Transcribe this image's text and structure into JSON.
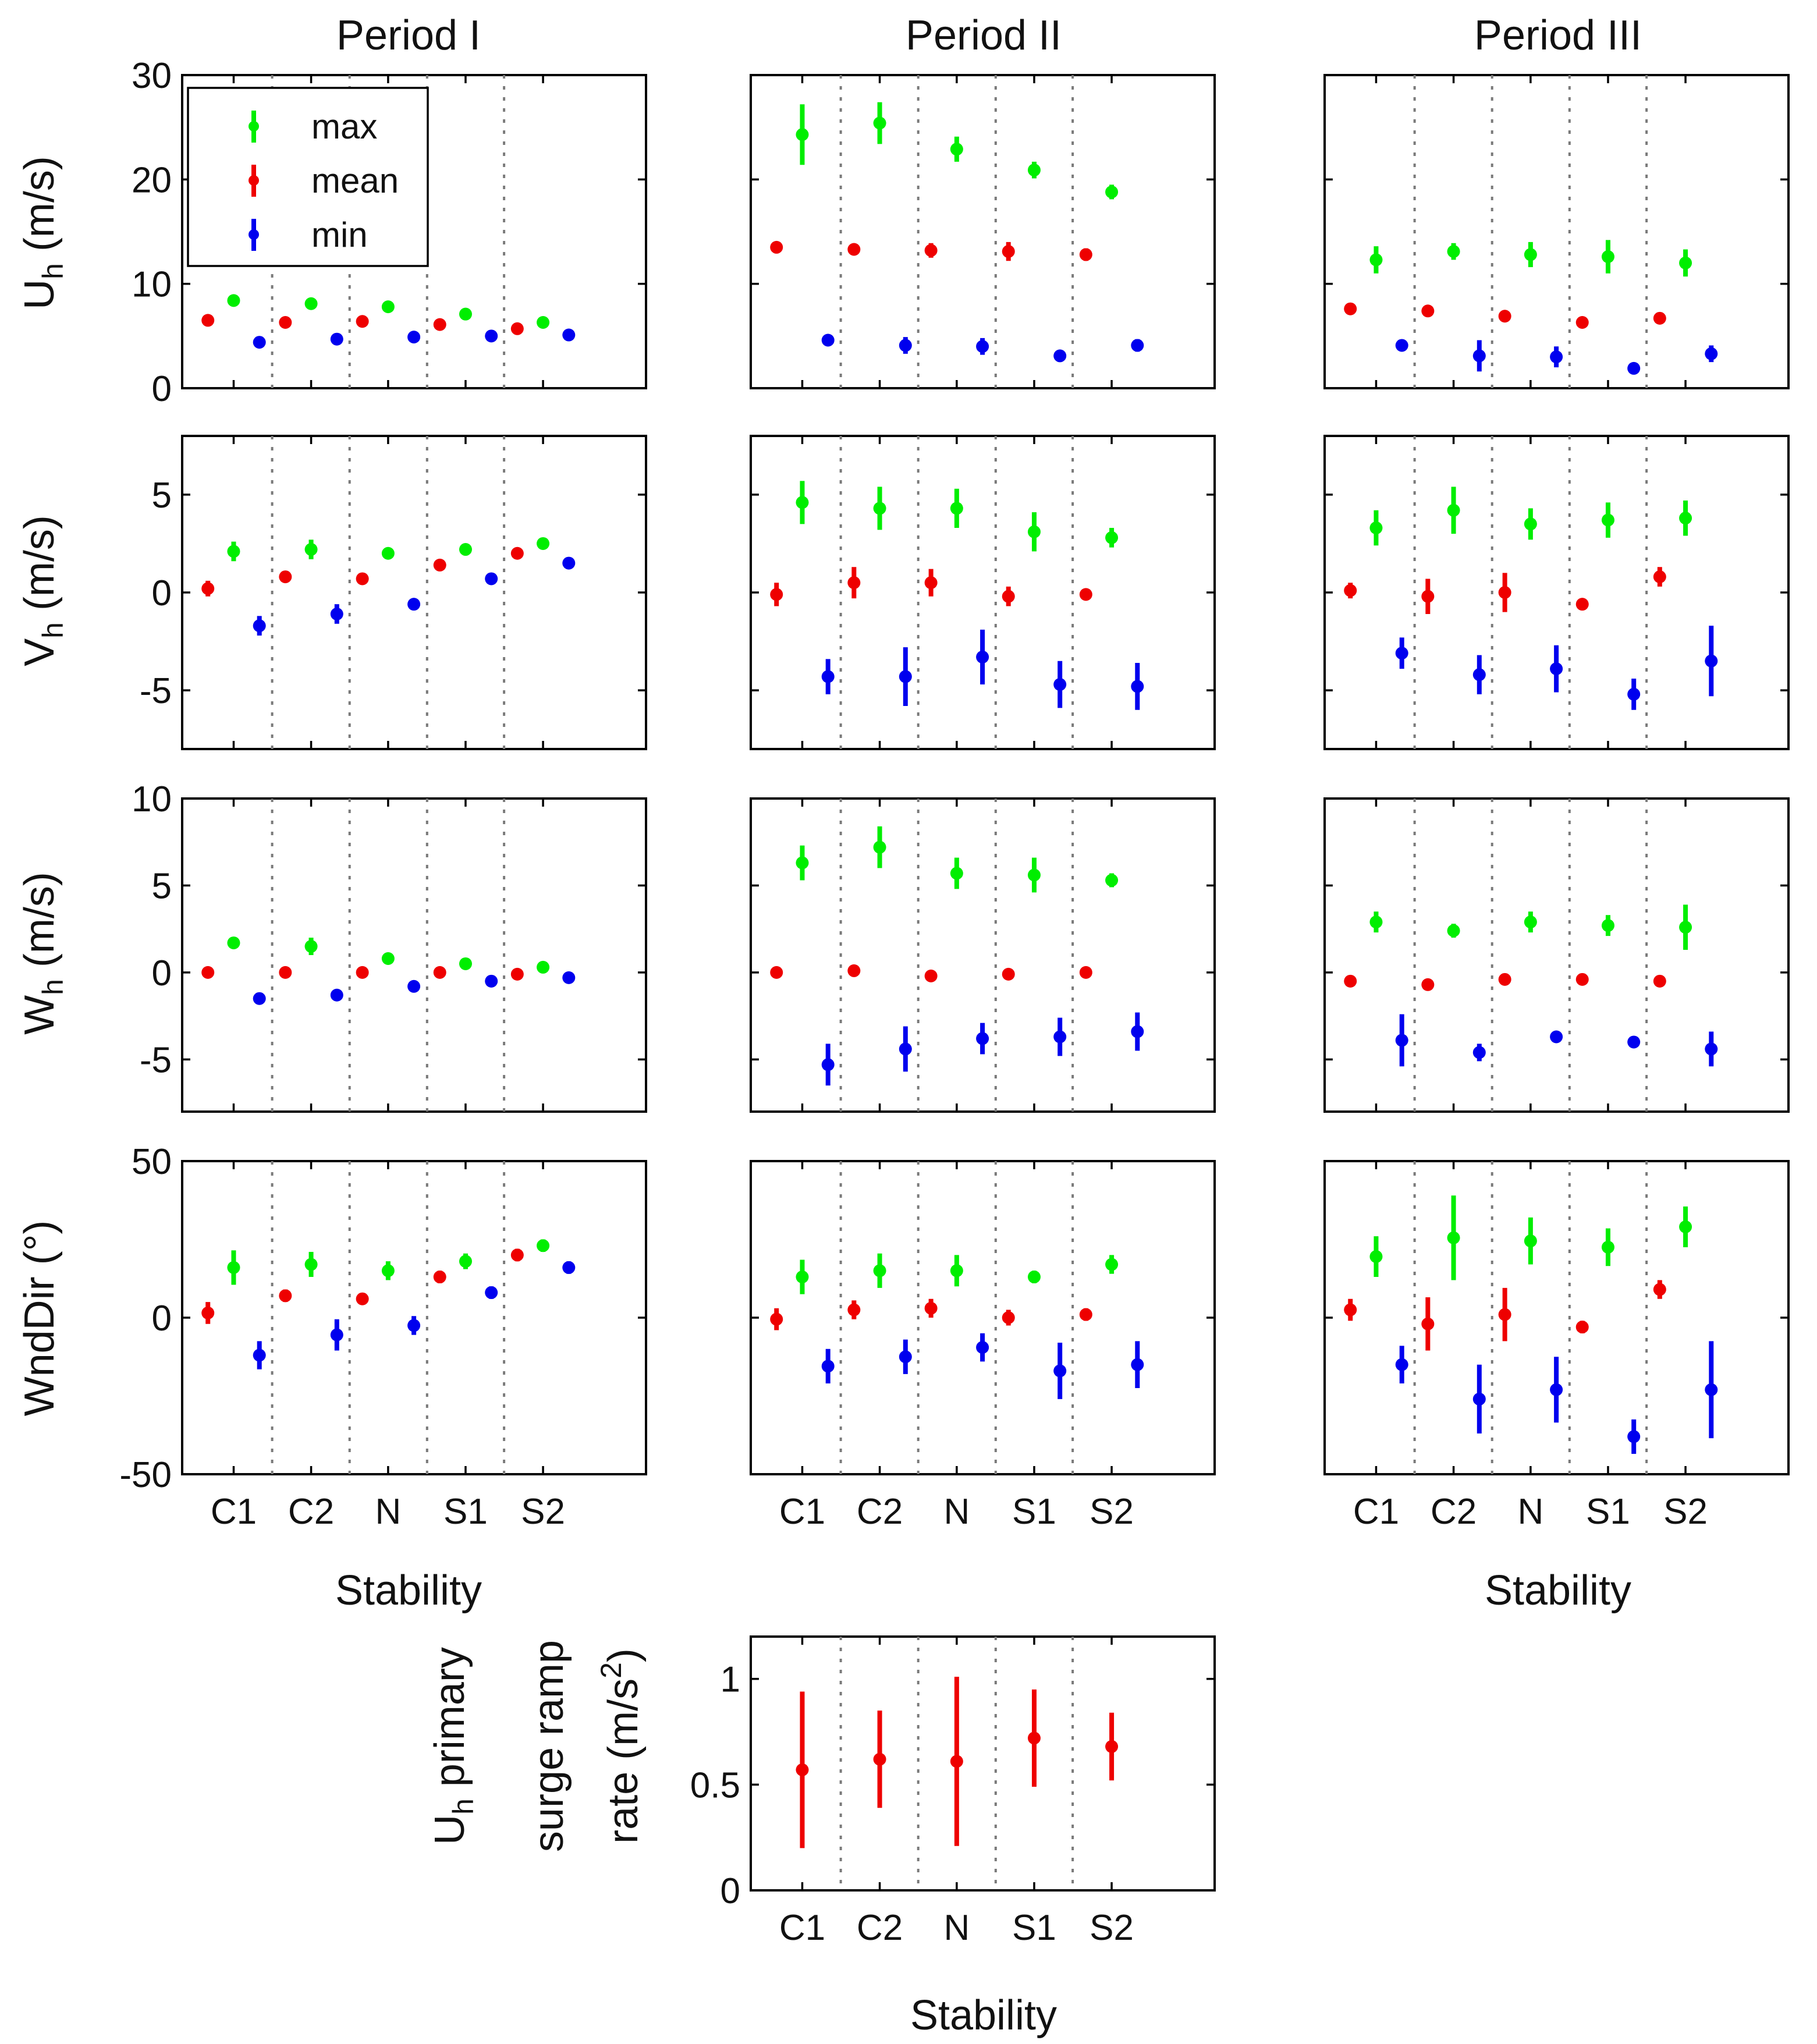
{
  "colors": {
    "max": "#00ee00",
    "mean": "#ee0000",
    "min": "#0000ee",
    "separator": "#7a7a7a"
  },
  "legend": {
    "entries": [
      {
        "key": "max",
        "label": "max"
      },
      {
        "key": "mean",
        "label": "mean"
      },
      {
        "key": "min",
        "label": "min"
      }
    ]
  },
  "chart_data": {
    "type": "errorbar",
    "categories": [
      "C1",
      "C2",
      "N",
      "S1",
      "S2"
    ],
    "xlabel": "Stability",
    "period_titles": [
      "Period I",
      "Period II",
      "Period III"
    ],
    "rows": [
      {
        "id": "uh",
        "ylabel_main": "U",
        "ylabel_sub": "h",
        "ylabel_rest": " (m/s)",
        "ylim": [
          0,
          30
        ],
        "yticks": [
          0,
          10,
          20,
          30
        ],
        "ytick_labels": [
          "0",
          "10",
          "20",
          "30"
        ],
        "periods": [
          {
            "max": [
              [
                8.4,
                0.4
              ],
              [
                8.1,
                0.4
              ],
              [
                7.8,
                0.4
              ],
              [
                7.1,
                0.3
              ],
              [
                6.3,
                0.3
              ]
            ],
            "mean": [
              [
                6.5,
                0.3
              ],
              [
                6.3,
                0.3
              ],
              [
                6.4,
                0.3
              ],
              [
                6.1,
                0.3
              ],
              [
                5.7,
                0.3
              ]
            ],
            "min": [
              [
                4.4,
                0.3
              ],
              [
                4.7,
                0.3
              ],
              [
                4.9,
                0.3
              ],
              [
                5.0,
                0.3
              ],
              [
                5.1,
                0.3
              ]
            ]
          },
          {
            "max": [
              [
                24.3,
                2.9
              ],
              [
                25.4,
                2.0
              ],
              [
                22.9,
                1.2
              ],
              [
                20.9,
                0.8
              ],
              [
                18.8,
                0.7
              ]
            ],
            "mean": [
              [
                13.5,
                0.4
              ],
              [
                13.3,
                0.5
              ],
              [
                13.2,
                0.7
              ],
              [
                13.1,
                0.9
              ],
              [
                12.8,
                0.6
              ]
            ],
            "min": [
              [
                4.6,
                0.4
              ],
              [
                4.1,
                0.8
              ],
              [
                4.0,
                0.8
              ],
              [
                3.1,
                0.4
              ],
              [
                4.1,
                0.6
              ]
            ]
          },
          {
            "max": [
              [
                12.3,
                1.3
              ],
              [
                13.1,
                0.8
              ],
              [
                12.8,
                1.2
              ],
              [
                12.6,
                1.6
              ],
              [
                12.0,
                1.3
              ]
            ],
            "mean": [
              [
                7.6,
                0.3
              ],
              [
                7.4,
                0.3
              ],
              [
                6.9,
                0.3
              ],
              [
                6.3,
                0.3
              ],
              [
                6.7,
                0.3
              ]
            ],
            "min": [
              [
                4.1,
                0.4
              ],
              [
                3.1,
                1.5
              ],
              [
                3.0,
                1.0
              ],
              [
                1.9,
                0.4
              ],
              [
                3.3,
                0.8
              ]
            ]
          }
        ]
      },
      {
        "id": "vh",
        "ylabel_main": "V",
        "ylabel_sub": "h",
        "ylabel_rest": " (m/s)",
        "ylim": [
          -8,
          8
        ],
        "yticks": [
          -5,
          0,
          5
        ],
        "ytick_labels": [
          "-5",
          "0",
          "5"
        ],
        "periods": [
          {
            "max": [
              [
                2.1,
                0.5
              ],
              [
                2.2,
                0.5
              ],
              [
                2.0,
                0.3
              ],
              [
                2.2,
                0.3
              ],
              [
                2.5,
                0.3
              ]
            ],
            "mean": [
              [
                0.2,
                0.4
              ],
              [
                0.8,
                0.3
              ],
              [
                0.7,
                0.3
              ],
              [
                1.4,
                0.3
              ],
              [
                2.0,
                0.3
              ]
            ],
            "min": [
              [
                -1.7,
                0.5
              ],
              [
                -1.1,
                0.5
              ],
              [
                -0.6,
                0.3
              ],
              [
                0.7,
                0.3
              ],
              [
                1.5,
                0.3
              ]
            ]
          },
          {
            "max": [
              [
                4.6,
                1.1
              ],
              [
                4.3,
                1.1
              ],
              [
                4.3,
                1.0
              ],
              [
                3.1,
                1.0
              ],
              [
                2.8,
                0.5
              ]
            ],
            "mean": [
              [
                -0.1,
                0.6
              ],
              [
                0.5,
                0.8
              ],
              [
                0.5,
                0.7
              ],
              [
                -0.2,
                0.5
              ],
              [
                -0.1,
                0.3
              ]
            ],
            "min": [
              [
                -4.3,
                0.9
              ],
              [
                -4.3,
                1.5
              ],
              [
                -3.3,
                1.4
              ],
              [
                -4.7,
                1.2
              ],
              [
                -4.8,
                1.2
              ]
            ]
          },
          {
            "max": [
              [
                3.3,
                0.9
              ],
              [
                4.2,
                1.2
              ],
              [
                3.5,
                0.8
              ],
              [
                3.7,
                0.9
              ],
              [
                3.8,
                0.9
              ]
            ],
            "mean": [
              [
                0.1,
                0.4
              ],
              [
                -0.2,
                0.9
              ],
              [
                0.0,
                1.0
              ],
              [
                -0.6,
                0.2
              ],
              [
                0.8,
                0.5
              ]
            ],
            "min": [
              [
                -3.1,
                0.8
              ],
              [
                -4.2,
                1.0
              ],
              [
                -3.9,
                1.2
              ],
              [
                -5.2,
                0.8
              ],
              [
                -3.5,
                1.8
              ]
            ]
          }
        ]
      },
      {
        "id": "wh",
        "ylabel_main": "W",
        "ylabel_sub": "h",
        "ylabel_rest": " (m/s)",
        "ylim": [
          -8,
          10
        ],
        "yticks": [
          -5,
          0,
          5,
          10
        ],
        "ytick_labels": [
          "-5",
          "0",
          "5",
          "10"
        ],
        "periods": [
          {
            "max": [
              [
                1.7,
                0.3
              ],
              [
                1.5,
                0.5
              ],
              [
                0.8,
                0.3
              ],
              [
                0.5,
                0.2
              ],
              [
                0.3,
                0.2
              ]
            ],
            "mean": [
              [
                0.0,
                0.2
              ],
              [
                0.0,
                0.2
              ],
              [
                0.0,
                0.2
              ],
              [
                0.0,
                0.2
              ],
              [
                -0.1,
                0.2
              ]
            ],
            "min": [
              [
                -1.5,
                0.3
              ],
              [
                -1.3,
                0.3
              ],
              [
                -0.8,
                0.3
              ],
              [
                -0.5,
                0.2
              ],
              [
                -0.3,
                0.2
              ]
            ]
          },
          {
            "max": [
              [
                6.3,
                1.0
              ],
              [
                7.2,
                1.2
              ],
              [
                5.7,
                0.9
              ],
              [
                5.6,
                1.0
              ],
              [
                5.3,
                0.4
              ]
            ],
            "mean": [
              [
                0.0,
                0.2
              ],
              [
                0.1,
                0.2
              ],
              [
                -0.2,
                0.2
              ],
              [
                -0.1,
                0.2
              ],
              [
                0.0,
                0.2
              ]
            ],
            "min": [
              [
                -5.3,
                1.2
              ],
              [
                -4.4,
                1.3
              ],
              [
                -3.8,
                0.9
              ],
              [
                -3.7,
                1.1
              ],
              [
                -3.4,
                1.1
              ]
            ]
          },
          {
            "max": [
              [
                2.9,
                0.6
              ],
              [
                2.4,
                0.4
              ],
              [
                2.9,
                0.6
              ],
              [
                2.7,
                0.6
              ],
              [
                2.6,
                1.3
              ]
            ],
            "mean": [
              [
                -0.5,
                0.3
              ],
              [
                -0.7,
                0.2
              ],
              [
                -0.4,
                0.2
              ],
              [
                -0.4,
                0.2
              ],
              [
                -0.5,
                0.2
              ]
            ],
            "min": [
              [
                -3.9,
                1.5
              ],
              [
                -4.6,
                0.5
              ],
              [
                -3.7,
                0.3
              ],
              [
                -4.0,
                0.3
              ],
              [
                -4.4,
                1.0
              ]
            ]
          }
        ]
      },
      {
        "id": "wnddir",
        "ylabel_main": "WndDir (°)",
        "ylabel_sub": "",
        "ylabel_rest": "",
        "ylim": [
          -50,
          50
        ],
        "yticks": [
          -50,
          0,
          50
        ],
        "ytick_labels": [
          "-50",
          "0",
          "50"
        ],
        "periods": [
          {
            "max": [
              [
                16.0,
                5.5
              ],
              [
                17.0,
                4.0
              ],
              [
                15.0,
                3.0
              ],
              [
                18.0,
                2.5
              ],
              [
                23.0,
                2.0
              ]
            ],
            "mean": [
              [
                1.5,
                3.5
              ],
              [
                7.0,
                2.0
              ],
              [
                6.0,
                1.5
              ],
              [
                13.0,
                2.0
              ],
              [
                20.0,
                2.0
              ]
            ],
            "min": [
              [
                -12.0,
                4.5
              ],
              [
                -5.5,
                5.0
              ],
              [
                -2.5,
                3.0
              ],
              [
                8.0,
                2.0
              ],
              [
                16.0,
                2.0
              ]
            ]
          },
          {
            "max": [
              [
                13.0,
                5.5
              ],
              [
                15.0,
                5.5
              ],
              [
                15.0,
                5.0
              ],
              [
                13.0,
                2.0
              ],
              [
                17.0,
                3.0
              ]
            ],
            "mean": [
              [
                -0.5,
                3.5
              ],
              [
                2.5,
                3.0
              ],
              [
                3.0,
                3.0
              ],
              [
                0.0,
                2.5
              ],
              [
                1.0,
                2.0
              ]
            ],
            "min": [
              [
                -15.5,
                5.5
              ],
              [
                -12.5,
                5.5
              ],
              [
                -9.5,
                4.5
              ],
              [
                -17.0,
                9.0
              ],
              [
                -15.0,
                7.5
              ]
            ]
          },
          {
            "max": [
              [
                19.5,
                6.5
              ],
              [
                25.5,
                13.5
              ],
              [
                24.5,
                7.5
              ],
              [
                22.5,
                6.0
              ],
              [
                29.0,
                6.5
              ]
            ],
            "mean": [
              [
                2.5,
                3.5
              ],
              [
                -2.0,
                8.5
              ],
              [
                1.0,
                8.5
              ],
              [
                -3.0,
                2.0
              ],
              [
                9.0,
                3.0
              ]
            ],
            "min": [
              [
                -15.0,
                6.0
              ],
              [
                -26.0,
                11.0
              ],
              [
                -23.0,
                10.5
              ],
              [
                -38.0,
                5.5
              ],
              [
                -23.0,
                15.5
              ]
            ]
          }
        ]
      }
    ],
    "surge": {
      "ylabel_lines": [
        [
          "U",
          "h",
          " primary"
        ],
        [
          "surge ramp",
          "",
          ""
        ],
        [
          "rate (m/s",
          "2",
          ")"
        ]
      ],
      "ylim": [
        0,
        1.2
      ],
      "yticks": [
        0,
        0.5,
        1
      ],
      "ytick_labels": [
        "0",
        "0.5",
        "1"
      ],
      "series": "mean",
      "values": [
        [
          0.57,
          0.37
        ],
        [
          0.62,
          0.23
        ],
        [
          0.61,
          0.4
        ],
        [
          0.72,
          0.23
        ],
        [
          0.68,
          0.16
        ]
      ]
    }
  }
}
